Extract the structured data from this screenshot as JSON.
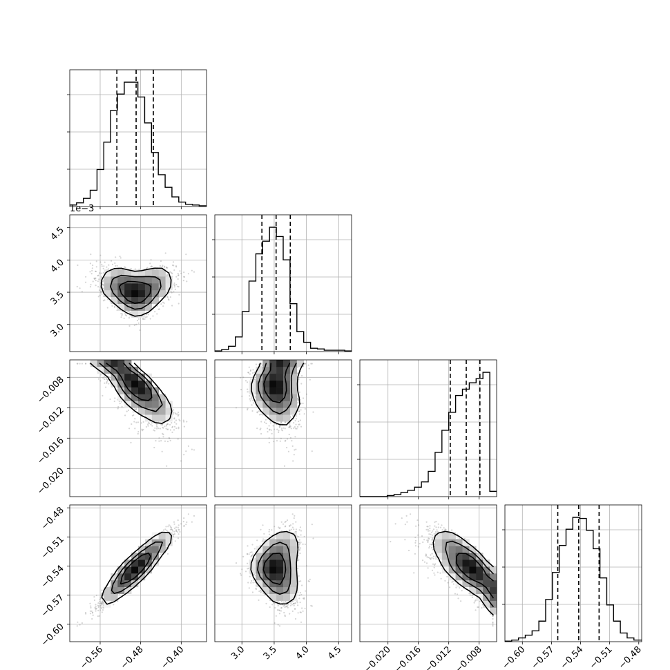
{
  "chart_data": {
    "type": "corner",
    "title": "",
    "parameters": [
      "",
      "",
      "",
      ""
    ],
    "offset_labels": {
      "y_param1": "1e−3",
      "x_param1": "1e−3"
    },
    "quantile_lines": "dashed, at 16/50/84 percentiles",
    "grid": true,
    "diagonal": [
      {
        "param": 0,
        "range": [
          -0.62,
          -0.35
        ],
        "ticks": [
          -0.56,
          -0.48,
          -0.4
        ],
        "tick_labels": [
          "−0.56",
          "−0.48",
          "−0.40"
        ],
        "quantiles": [
          -0.527,
          -0.489,
          -0.455
        ],
        "bin_edges": [
          -0.62,
          -0.6066,
          -0.5931,
          -0.5797,
          -0.5662,
          -0.5528,
          -0.5393,
          -0.5259,
          -0.5124,
          -0.499,
          -0.4855,
          -0.4721,
          -0.4586,
          -0.4452,
          -0.4317,
          -0.4183,
          -0.4048,
          -0.3914,
          -0.3779,
          -0.3645,
          -0.35
        ],
        "counts": [
          2,
          5,
          11,
          22,
          50,
          87,
          130,
          152,
          168,
          168,
          148,
          113,
          73,
          43,
          26,
          13,
          6,
          3,
          2,
          1
        ]
      },
      {
        "param": 1,
        "range": [
          2.58,
          4.7
        ],
        "ticks": [
          3.0,
          3.5,
          4.0,
          4.5
        ],
        "tick_labels": [
          "3.0",
          "3.5",
          "4.0",
          "4.5"
        ],
        "quantiles": [
          3.31,
          3.53,
          3.75
        ],
        "bin_edges": [
          2.58,
          2.686,
          2.792,
          2.898,
          3.004,
          3.11,
          3.216,
          3.322,
          3.428,
          3.534,
          3.64,
          3.746,
          3.852,
          3.958,
          4.064,
          4.17,
          4.276,
          4.382,
          4.488,
          4.594,
          4.7
        ],
        "counts": [
          1,
          3,
          8,
          22,
          60,
          106,
          147,
          166,
          187,
          173,
          138,
          72,
          30,
          14,
          5,
          4,
          2,
          2,
          2,
          1
        ]
      },
      {
        "param": 2,
        "range": [
          -0.0237,
          -0.0057
        ],
        "ticks": [
          -0.02,
          -0.016,
          -0.012,
          -0.008
        ],
        "tick_labels": [
          "−0.020",
          "−0.016",
          "−0.012",
          "−0.008"
        ],
        "quantiles": [
          -0.0118,
          -0.0097,
          -0.0079
        ],
        "bin_edges": [
          -0.0237,
          -0.0228,
          -0.0219,
          -0.021,
          -0.0201,
          -0.0192,
          -0.0183,
          -0.0174,
          -0.0165,
          -0.0156,
          -0.0147,
          -0.0138,
          -0.0129,
          -0.012,
          -0.0111,
          -0.0102,
          -0.0093,
          -0.0084,
          -0.0075,
          -0.0066,
          -0.0057
        ],
        "counts": [
          0,
          0,
          0,
          0,
          1,
          2,
          4,
          6,
          9,
          14,
          24,
          42,
          63,
          80,
          96,
          102,
          108,
          112,
          118,
          5
        ]
      },
      {
        "param": 3,
        "range": [
          -0.618,
          -0.477
        ],
        "ticks": [
          -0.6,
          -0.57,
          -0.54,
          -0.51,
          -0.48
        ],
        "tick_labels": [
          "−0.60",
          "−0.57",
          "−0.54",
          "−0.51",
          "−0.48"
        ],
        "quantiles": [
          -0.5635,
          -0.5419,
          -0.5209
        ],
        "bin_edges": [
          -0.618,
          -0.611,
          -0.604,
          -0.597,
          -0.59,
          -0.583,
          -0.576,
          -0.569,
          -0.562,
          -0.555,
          -0.548,
          -0.541,
          -0.534,
          -0.527,
          -0.52,
          -0.513,
          -0.506,
          -0.499,
          -0.492,
          -0.485,
          -0.477
        ],
        "counts": [
          1,
          3,
          7,
          12,
          20,
          38,
          78,
          128,
          178,
          208,
          230,
          228,
          206,
          172,
          118,
          68,
          38,
          16,
          7,
          3
        ]
      }
    ],
    "pair_plots": [
      {
        "row": 1,
        "col": 0,
        "style": "scatter points with 2D histogram and contours",
        "correlation": "weak, V-shaped"
      },
      {
        "row": 2,
        "col": 0,
        "style": "scatter points with 2D histogram and contours",
        "correlation": "negative"
      },
      {
        "row": 2,
        "col": 1,
        "style": "scatter points with 2D histogram and contours",
        "correlation": "negative"
      },
      {
        "row": 3,
        "col": 0,
        "style": "scatter points with 2D histogram and contours",
        "correlation": "strong positive"
      },
      {
        "row": 3,
        "col": 1,
        "style": "scatter points with 2D histogram and contours",
        "correlation": "weak, curved"
      },
      {
        "row": 3,
        "col": 2,
        "style": "scatter points with 2D histogram and contours",
        "correlation": "strong negative"
      }
    ]
  }
}
